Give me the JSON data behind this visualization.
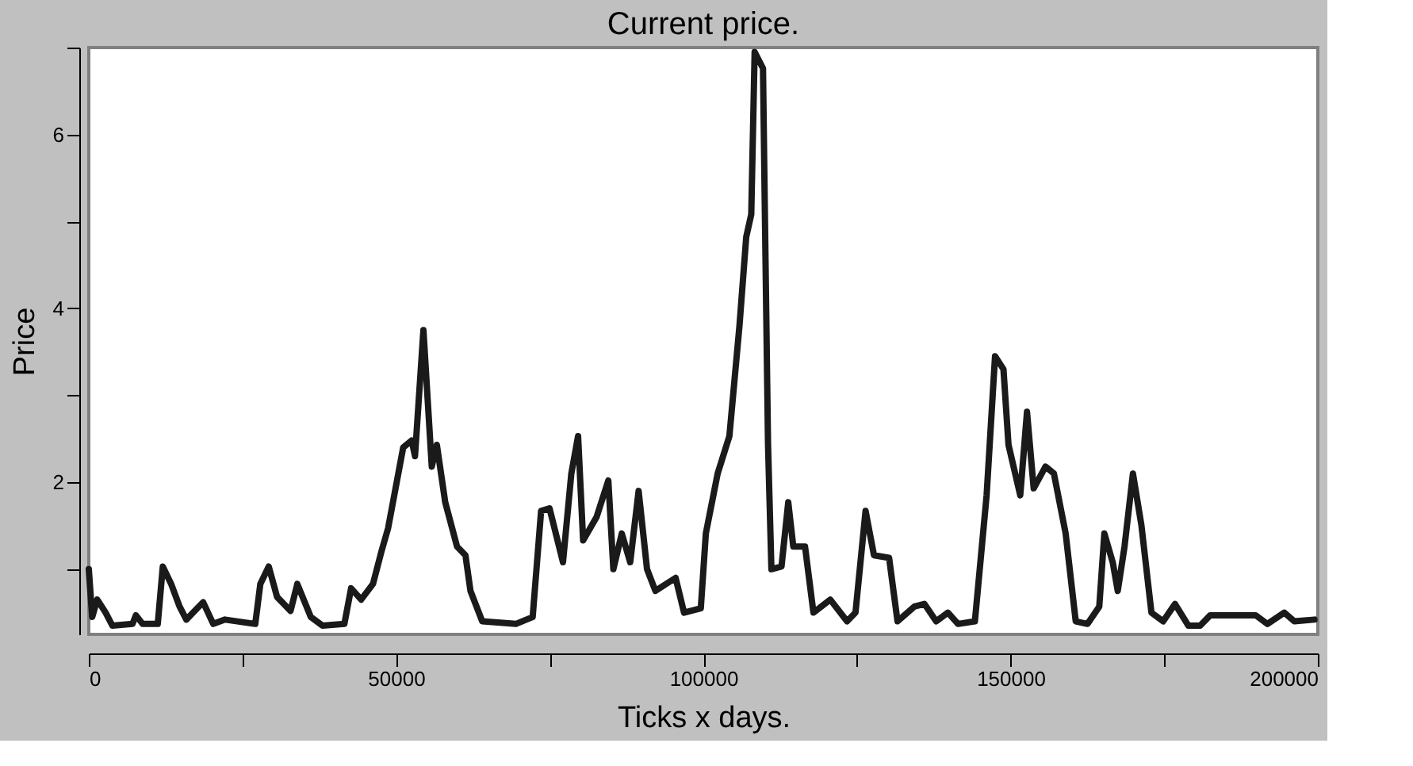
{
  "chart_data": {
    "type": "line",
    "title": "Current price.",
    "xlabel": "Ticks x days.",
    "ylabel": "Price",
    "x": [
      0,
      550,
      1370,
      2740,
      3830,
      7110,
      7660,
      8760,
      11220,
      12040,
      13400,
      14770,
      15870,
      18600,
      20250,
      22160,
      27090,
      27910,
      29280,
      30640,
      32830,
      33930,
      36120,
      38030,
      41590,
      42680,
      44320,
      46240,
      47610,
      48700,
      51160,
      52530,
      53080,
      54450,
      55810,
      56640,
      58000,
      59920,
      61290,
      62110,
      64020,
      69490,
      72230,
      73600,
      74970,
      77160,
      78520,
      79620,
      80440,
      82630,
      84540,
      85360,
      86730,
      88100,
      89470,
      90840,
      92200,
      95490,
      96860,
      99590,
      100410,
      102330,
      104240,
      105880,
      106980,
      107800,
      108350,
      109710,
      109990,
      110530,
      111080,
      112720,
      113820,
      114640,
      116550,
      117920,
      120660,
      123390,
      124760,
      126400,
      127770,
      130230,
      131600,
      134340,
      135980,
      137890,
      139810,
      141450,
      144190,
      146100,
      147470,
      148840,
      149660,
      151570,
      152670,
      153760,
      155680,
      157050,
      158960,
      160600,
      162520,
      164430,
      165260,
      166620,
      167440,
      168540,
      169910,
      171280,
      172920,
      174830,
      176750,
      178940,
      180850,
      182490,
      189880,
      191790,
      194530,
      196170,
      199450
    ],
    "series": [
      {
        "color": "#1a1a1a",
        "values": [
          1.0,
          0.45,
          0.65,
          0.5,
          0.35,
          0.37,
          0.47,
          0.37,
          0.37,
          1.03,
          0.83,
          0.57,
          0.42,
          0.62,
          0.37,
          0.42,
          0.37,
          0.83,
          1.03,
          0.68,
          0.52,
          0.83,
          0.45,
          0.35,
          0.37,
          0.78,
          0.65,
          0.83,
          1.2,
          1.47,
          2.4,
          2.48,
          2.3,
          3.75,
          2.18,
          2.43,
          1.77,
          1.26,
          1.16,
          0.75,
          0.4,
          0.37,
          0.45,
          1.67,
          1.7,
          1.08,
          2.1,
          2.53,
          1.33,
          1.6,
          2.02,
          1.0,
          1.41,
          1.08,
          1.9,
          1.0,
          0.75,
          0.9,
          0.5,
          0.55,
          1.41,
          2.1,
          2.53,
          3.8,
          4.82,
          5.08,
          6.95,
          6.76,
          5.23,
          2.43,
          1.0,
          1.03,
          1.77,
          1.26,
          1.26,
          0.5,
          0.65,
          0.4,
          0.5,
          1.67,
          1.16,
          1.13,
          0.4,
          0.57,
          0.6,
          0.4,
          0.5,
          0.37,
          0.4,
          1.85,
          3.45,
          3.3,
          2.43,
          1.85,
          2.81,
          1.93,
          2.18,
          2.1,
          1.41,
          0.4,
          0.37,
          0.57,
          1.41,
          1.08,
          0.75,
          1.26,
          2.1,
          1.51,
          0.5,
          0.4,
          0.6,
          0.35,
          0.35,
          0.47,
          0.47,
          0.37,
          0.5,
          0.4,
          0.42
        ]
      }
    ],
    "xlim": [
      0,
      200000
    ],
    "xticks": [
      0,
      {
        "value": 25000,
        "label": null
      },
      50000,
      {
        "value": 75000,
        "label": null
      },
      100000,
      {
        "value": 125000,
        "label": null
      },
      150000,
      {
        "value": 175000,
        "label": null
      },
      200000
    ],
    "ylim": [
      0.25,
      7
    ],
    "yticks": [
      {
        "value": 1,
        "label": null
      },
      2,
      {
        "value": 3,
        "label": null
      },
      4,
      {
        "value": 5,
        "label": null
      },
      6,
      {
        "value": 7,
        "label": null
      }
    ],
    "grid": false,
    "legend": false,
    "marker": "none",
    "line_style": "solid"
  }
}
